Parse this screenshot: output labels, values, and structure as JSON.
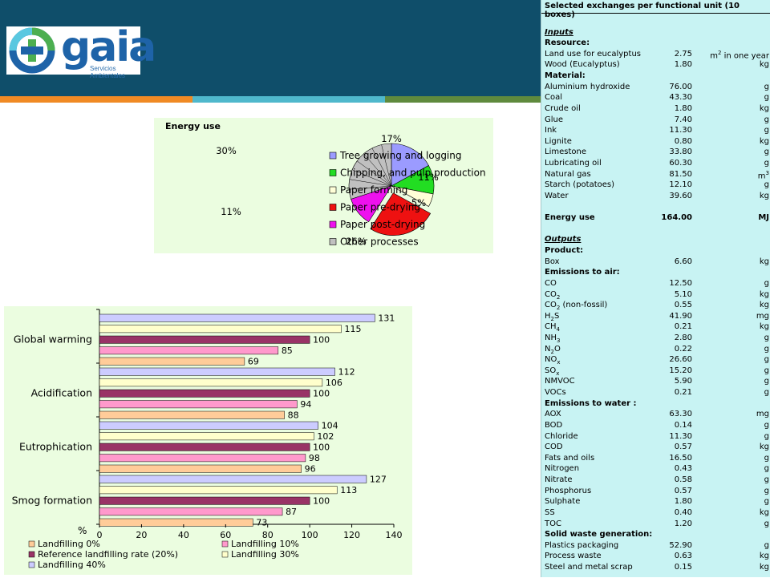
{
  "logo": {
    "name": "gaia",
    "subtitle": "Servicios Ambientales"
  },
  "colors": {
    "header": "#0f4e6a",
    "stripe": [
      "#f08a24",
      "#4fb8cc",
      "#5f8a3d"
    ],
    "panel_bg": "#ebfde0",
    "table_bg": "#c8f3f3"
  },
  "pie": {
    "title": "Energy use",
    "legend_items": [
      {
        "label": "Tree growing and logging",
        "color": "#9b9bff"
      },
      {
        "label": "Chipping, and pulp production",
        "color": "#22dd22"
      },
      {
        "label": "Paper forming",
        "color": "#ffffd8"
      },
      {
        "label": "Paper pre-drying",
        "color": "#ee1111"
      },
      {
        "label": "Paper post-drying",
        "color": "#ee11ee"
      },
      {
        "label": "Other processes",
        "color": "#c0c0c0"
      }
    ],
    "pct_labels": [
      "17%",
      "11%",
      "5%",
      "26%",
      "11%",
      "30%"
    ]
  },
  "chart_data": [
    {
      "type": "pie",
      "title": "Energy use",
      "categories": [
        "Tree growing and logging",
        "Chipping, and pulp production",
        "Paper forming",
        "Paper pre-drying",
        "Paper post-drying",
        "Other processes"
      ],
      "values": [
        17,
        11,
        5,
        26,
        11,
        30
      ],
      "exploded": [
        "Paper pre-drying"
      ],
      "legend": "right"
    },
    {
      "type": "bar",
      "orientation": "horizontal",
      "categories": [
        "Global warming",
        "Acidification",
        "Eutrophication",
        "Smog formation"
      ],
      "series": [
        {
          "name": "Landfilling 0%",
          "color": "#ffcc99",
          "values": [
            69,
            88,
            96,
            73
          ]
        },
        {
          "name": "Landfilling 10%",
          "color": "#ff99cc",
          "values": [
            85,
            94,
            98,
            87
          ]
        },
        {
          "name": "Reference landfilling rate (20%)",
          "color": "#993366",
          "values": [
            100,
            100,
            100,
            100
          ]
        },
        {
          "name": "Landfilling 30%",
          "color": "#ffffcc",
          "values": [
            115,
            106,
            102,
            113
          ]
        },
        {
          "name": "Landfilling 40%",
          "color": "#ccccff",
          "values": [
            131,
            112,
            104,
            127
          ]
        }
      ],
      "xlabel": "%",
      "xlim": [
        0,
        140
      ],
      "xticks": [
        0,
        20,
        40,
        60,
        80,
        100,
        120,
        140
      ],
      "legend": "bottom"
    }
  ],
  "bar_legend_order": [
    0,
    1,
    2,
    3,
    4
  ],
  "table": {
    "title": "Selected exchanges per functional unit (10 boxes)",
    "rows": [
      {
        "k": "blank"
      },
      {
        "k": "section",
        "name": "Inputs"
      },
      {
        "k": "group",
        "name": "Resource:"
      },
      {
        "k": "item",
        "name": "Land use for eucalyptus",
        "value": "2.75",
        "unit": "m2 in one year"
      },
      {
        "k": "item",
        "name": "Wood (Eucalyptus)",
        "value": "1.80",
        "unit": "kg"
      },
      {
        "k": "group",
        "name": "Material:"
      },
      {
        "k": "item",
        "name": "Aluminium hydroxide",
        "value": "76.00",
        "unit": "g"
      },
      {
        "k": "item",
        "name": "Coal",
        "value": "43.30",
        "unit": "g"
      },
      {
        "k": "item",
        "name": "Crude oil",
        "value": "1.80",
        "unit": "kg"
      },
      {
        "k": "item",
        "name": "Glue",
        "value": "7.40",
        "unit": "g"
      },
      {
        "k": "item",
        "name": "Ink",
        "value": "11.30",
        "unit": "g"
      },
      {
        "k": "item",
        "name": "Lignite",
        "value": "0.80",
        "unit": "kg"
      },
      {
        "k": "item",
        "name": "Limestone",
        "value": "33.80",
        "unit": "g"
      },
      {
        "k": "item",
        "name": "Lubricating oil",
        "value": "60.30",
        "unit": "g"
      },
      {
        "k": "item",
        "name": "Natural gas",
        "value": "81.50",
        "unit": "m3"
      },
      {
        "k": "item",
        "name": "Starch (potatoes)",
        "value": "12.10",
        "unit": "g"
      },
      {
        "k": "item",
        "name": "Water",
        "value": "39.60",
        "unit": "kg"
      },
      {
        "k": "blank"
      },
      {
        "k": "total",
        "name": "Energy use",
        "value": "164.00",
        "unit": "MJ"
      },
      {
        "k": "blank"
      },
      {
        "k": "section",
        "name": "Outputs"
      },
      {
        "k": "group",
        "name": "Product:"
      },
      {
        "k": "item",
        "name": "Box",
        "value": "6.60",
        "unit": "kg"
      },
      {
        "k": "group",
        "name": "Emissions to air:"
      },
      {
        "k": "item",
        "name": "CO",
        "value": "12.50",
        "unit": "g"
      },
      {
        "k": "item",
        "name": "CO2",
        "value": "5.10",
        "unit": "kg"
      },
      {
        "k": "item",
        "name": "CO2 (non-fossil)",
        "value": "0.55",
        "unit": "kg"
      },
      {
        "k": "item",
        "name": "H2S",
        "value": "41.90",
        "unit": "mg"
      },
      {
        "k": "item",
        "name": "CH4",
        "value": "0.21",
        "unit": "kg"
      },
      {
        "k": "item",
        "name": "NH3",
        "value": "2.80",
        "unit": "g"
      },
      {
        "k": "item",
        "name": "N2O",
        "value": "0.22",
        "unit": "g"
      },
      {
        "k": "item",
        "name": "NOx",
        "value": "26.60",
        "unit": "g"
      },
      {
        "k": "item",
        "name": "SOx",
        "value": "15.20",
        "unit": "g"
      },
      {
        "k": "item",
        "name": "NMVOC",
        "value": "5.90",
        "unit": "g"
      },
      {
        "k": "item",
        "name": "VOCs",
        "value": "0.21",
        "unit": "g"
      },
      {
        "k": "group",
        "name": "Emissions to water :"
      },
      {
        "k": "item",
        "name": "AOX",
        "value": "63.30",
        "unit": "mg"
      },
      {
        "k": "item",
        "name": "BOD",
        "value": "0.14",
        "unit": "g"
      },
      {
        "k": "item",
        "name": "Chloride",
        "value": "11.30",
        "unit": "g"
      },
      {
        "k": "item",
        "name": "COD",
        "value": "0.57",
        "unit": "kg"
      },
      {
        "k": "item",
        "name": "Fats and oils",
        "value": "16.50",
        "unit": "g"
      },
      {
        "k": "item",
        "name": "Nitrogen",
        "value": "0.43",
        "unit": "g"
      },
      {
        "k": "item",
        "name": "Nitrate",
        "value": "0.58",
        "unit": "g"
      },
      {
        "k": "item",
        "name": "Phosphorus",
        "value": "0.57",
        "unit": "g"
      },
      {
        "k": "item",
        "name": "Sulphate",
        "value": "1.80",
        "unit": "g"
      },
      {
        "k": "item",
        "name": "SS",
        "value": "0.40",
        "unit": "kg"
      },
      {
        "k": "item",
        "name": "TOC",
        "value": "1.20",
        "unit": "g"
      },
      {
        "k": "group",
        "name": "Solid waste generation:"
      },
      {
        "k": "item",
        "name": "Plastics packaging",
        "value": "52.90",
        "unit": "g"
      },
      {
        "k": "item",
        "name": "Process waste",
        "value": "0.63",
        "unit": "kg"
      },
      {
        "k": "item",
        "name": "Steel and metal scrap",
        "value": "0.15",
        "unit": "kg"
      }
    ]
  }
}
